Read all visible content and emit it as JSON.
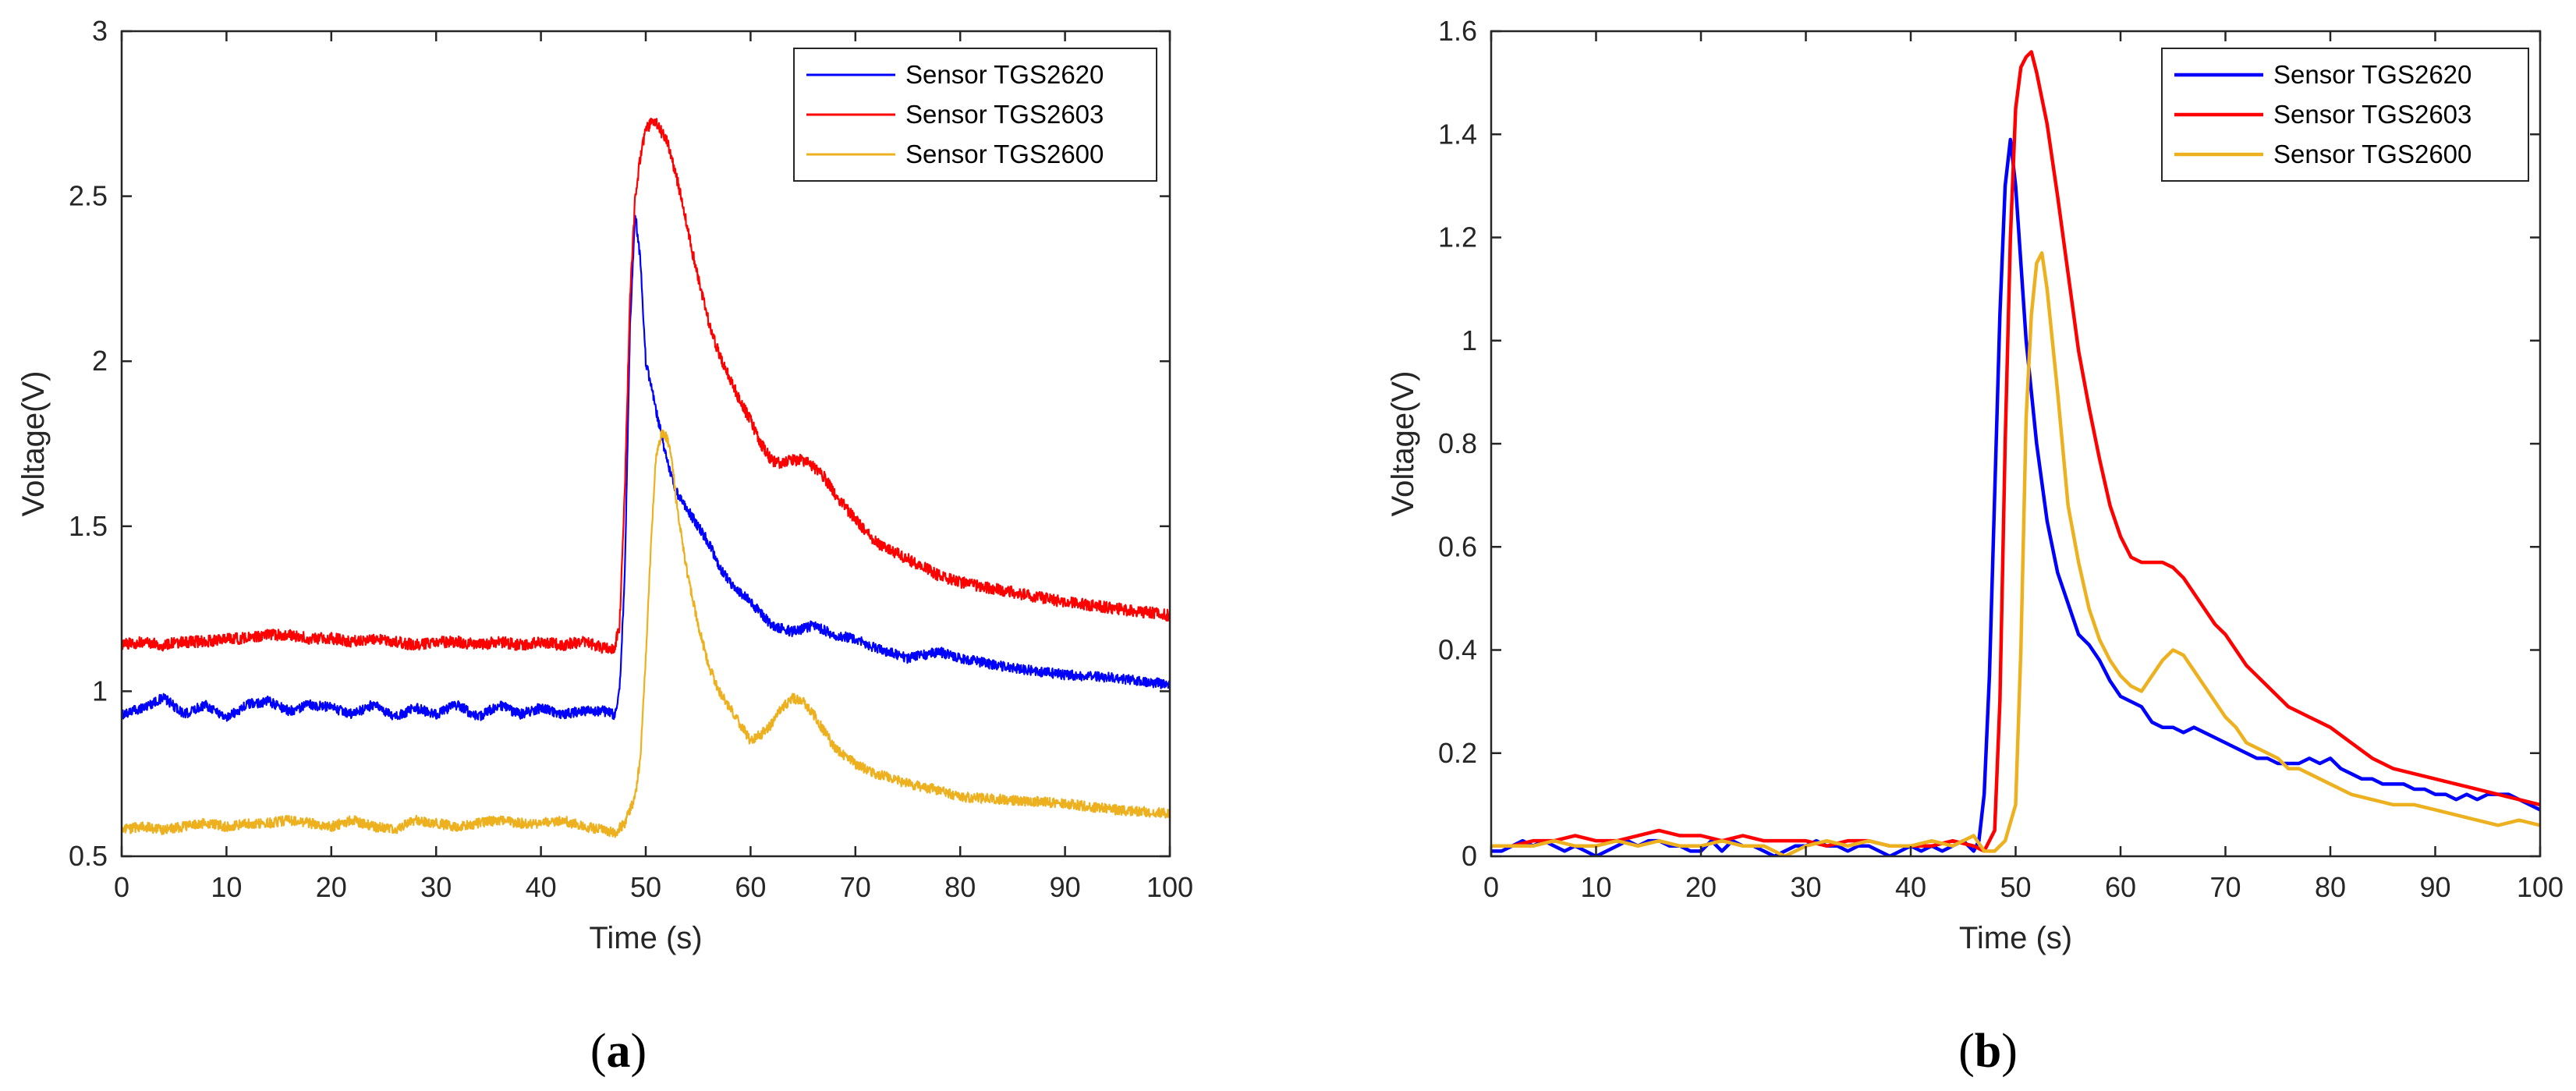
{
  "chart_data": [
    {
      "type": "line",
      "panel_label": "a",
      "xlabel": "Time (s)",
      "ylabel": "Voltage(V)",
      "xlim": [
        0,
        100
      ],
      "ylim": [
        0.5,
        3
      ],
      "xticks": [
        "0",
        "10",
        "20",
        "30",
        "40",
        "50",
        "60",
        "70",
        "80",
        "90",
        "100"
      ],
      "yticks": [
        "0.5",
        "1",
        "1.5",
        "2",
        "2.5",
        "3"
      ],
      "grid": false,
      "legend_position": "top-right",
      "noise": [
        0.03,
        0.035,
        0.03
      ],
      "series": [
        {
          "name": "Sensor TGS2620",
          "color": "#0000ff",
          "x": [
            0,
            2,
            4,
            6,
            8,
            10,
            12,
            14,
            16,
            18,
            20,
            22,
            24,
            26,
            28,
            30,
            32,
            34,
            36,
            38,
            40,
            42,
            44,
            46,
            47,
            47.5,
            48,
            48.5,
            49,
            49.5,
            50,
            51,
            52,
            53,
            54,
            55,
            56,
            57,
            58,
            60,
            62,
            64,
            66,
            68,
            70,
            72,
            75,
            78,
            80,
            85,
            90,
            95,
            100
          ],
          "y": [
            0.93,
            0.95,
            0.98,
            0.93,
            0.96,
            0.92,
            0.96,
            0.97,
            0.94,
            0.96,
            0.95,
            0.93,
            0.96,
            0.92,
            0.95,
            0.93,
            0.96,
            0.92,
            0.96,
            0.93,
            0.95,
            0.93,
            0.94,
            0.94,
            0.93,
            1.0,
            1.35,
            2.1,
            2.45,
            2.3,
            2.0,
            1.85,
            1.7,
            1.6,
            1.55,
            1.5,
            1.45,
            1.38,
            1.33,
            1.27,
            1.2,
            1.18,
            1.2,
            1.17,
            1.16,
            1.13,
            1.1,
            1.12,
            1.1,
            1.07,
            1.05,
            1.04,
            1.02
          ]
        },
        {
          "name": "Sensor TGS2603",
          "color": "#ff0000",
          "x": [
            0,
            2,
            4,
            6,
            8,
            10,
            12,
            14,
            16,
            18,
            20,
            22,
            24,
            26,
            28,
            30,
            32,
            34,
            36,
            38,
            40,
            42,
            44,
            46,
            47,
            47.5,
            48,
            48.5,
            49,
            49.5,
            50,
            50.5,
            51,
            52,
            53,
            54,
            55,
            56,
            57,
            58,
            59,
            60,
            61,
            62,
            63,
            64,
            65,
            66,
            67,
            68,
            70,
            72,
            75,
            78,
            80,
            85,
            90,
            95,
            100
          ],
          "y": [
            1.14,
            1.15,
            1.14,
            1.15,
            1.15,
            1.16,
            1.16,
            1.17,
            1.17,
            1.16,
            1.16,
            1.15,
            1.16,
            1.15,
            1.14,
            1.15,
            1.15,
            1.14,
            1.15,
            1.14,
            1.15,
            1.14,
            1.15,
            1.13,
            1.13,
            1.2,
            1.6,
            2.2,
            2.5,
            2.62,
            2.7,
            2.72,
            2.72,
            2.67,
            2.55,
            2.4,
            2.25,
            2.12,
            2.02,
            1.95,
            1.88,
            1.82,
            1.75,
            1.7,
            1.69,
            1.7,
            1.7,
            1.68,
            1.65,
            1.6,
            1.52,
            1.45,
            1.4,
            1.35,
            1.33,
            1.3,
            1.27,
            1.25,
            1.23
          ]
        },
        {
          "name": "Sensor TGS2600",
          "color": "#edb120",
          "x": [
            0,
            2,
            4,
            6,
            8,
            10,
            12,
            14,
            16,
            18,
            20,
            22,
            24,
            26,
            28,
            30,
            32,
            34,
            36,
            38,
            40,
            42,
            44,
            46,
            47,
            48,
            49,
            49.5,
            50,
            50.5,
            51,
            51.5,
            52,
            52.5,
            53,
            54,
            55,
            56,
            57,
            58,
            59,
            60,
            61,
            62,
            63,
            64,
            65,
            66,
            67,
            68,
            70,
            72,
            75,
            78,
            80,
            85,
            90,
            95,
            100
          ],
          "y": [
            0.58,
            0.59,
            0.58,
            0.59,
            0.6,
            0.59,
            0.6,
            0.6,
            0.61,
            0.6,
            0.59,
            0.61,
            0.59,
            0.58,
            0.61,
            0.6,
            0.59,
            0.6,
            0.61,
            0.6,
            0.6,
            0.61,
            0.59,
            0.58,
            0.57,
            0.6,
            0.68,
            0.8,
            1.1,
            1.45,
            1.72,
            1.78,
            1.77,
            1.7,
            1.55,
            1.35,
            1.2,
            1.08,
            1.0,
            0.95,
            0.9,
            0.85,
            0.87,
            0.9,
            0.95,
            0.98,
            0.97,
            0.93,
            0.88,
            0.83,
            0.78,
            0.75,
            0.72,
            0.7,
            0.68,
            0.67,
            0.66,
            0.64,
            0.63
          ]
        }
      ]
    },
    {
      "type": "line",
      "panel_label": "b",
      "xlabel": "Time (s)",
      "ylabel": "Voltage(V)",
      "xlim": [
        0,
        100
      ],
      "ylim": [
        0,
        1.6
      ],
      "xticks": [
        "0",
        "10",
        "20",
        "30",
        "40",
        "50",
        "60",
        "70",
        "80",
        "90",
        "100"
      ],
      "yticks": [
        "0",
        "0.2",
        "0.4",
        "0.6",
        "0.8",
        "1",
        "1.2",
        "1.4",
        "1.6"
      ],
      "grid": false,
      "legend_position": "top-right",
      "series": [
        {
          "name": "Sensor TGS2620",
          "color": "#0000ff",
          "x": [
            0,
            1,
            2,
            3,
            4,
            5,
            6,
            7,
            8,
            9,
            10,
            11,
            12,
            13,
            14,
            15,
            16,
            17,
            18,
            19,
            20,
            21,
            22,
            23,
            24,
            25,
            26,
            27,
            28,
            29,
            30,
            31,
            32,
            33,
            34,
            35,
            36,
            37,
            38,
            39,
            40,
            41,
            42,
            43,
            44,
            45,
            46,
            46.5,
            47,
            47.5,
            48,
            48.5,
            49,
            49.5,
            50,
            50.5,
            51,
            52,
            53,
            54,
            55,
            56,
            57,
            58,
            59,
            60,
            61,
            62,
            63,
            64,
            65,
            66,
            67,
            68,
            69,
            70,
            71,
            72,
            73,
            74,
            75,
            76,
            77,
            78,
            79,
            80,
            81,
            82,
            83,
            84,
            85,
            86,
            87,
            88,
            89,
            90,
            91,
            92,
            93,
            94,
            95,
            96,
            97,
            98,
            99,
            100
          ],
          "y": [
            0.01,
            0.01,
            0.02,
            0.03,
            0.02,
            0.03,
            0.02,
            0.01,
            0.02,
            0.01,
            0.0,
            0.01,
            0.02,
            0.03,
            0.02,
            0.03,
            0.03,
            0.02,
            0.02,
            0.01,
            0.01,
            0.03,
            0.01,
            0.03,
            0.02,
            0.02,
            0.01,
            0.0,
            0.01,
            0.02,
            0.02,
            0.03,
            0.02,
            0.02,
            0.01,
            0.02,
            0.02,
            0.01,
            0.0,
            0.01,
            0.02,
            0.01,
            0.02,
            0.01,
            0.02,
            0.03,
            0.01,
            0.03,
            0.12,
            0.35,
            0.7,
            1.05,
            1.3,
            1.39,
            1.3,
            1.15,
            1.0,
            0.8,
            0.65,
            0.55,
            0.49,
            0.43,
            0.41,
            0.38,
            0.34,
            0.31,
            0.3,
            0.29,
            0.26,
            0.25,
            0.25,
            0.24,
            0.25,
            0.24,
            0.23,
            0.22,
            0.21,
            0.2,
            0.19,
            0.19,
            0.18,
            0.18,
            0.18,
            0.19,
            0.18,
            0.19,
            0.17,
            0.16,
            0.15,
            0.15,
            0.14,
            0.14,
            0.14,
            0.13,
            0.13,
            0.12,
            0.12,
            0.11,
            0.12,
            0.11,
            0.12,
            0.12,
            0.12,
            0.11,
            0.1,
            0.09
          ]
        },
        {
          "name": "Sensor TGS2603",
          "color": "#ff0000",
          "x": [
            0,
            2,
            4,
            6,
            8,
            10,
            12,
            14,
            16,
            18,
            20,
            22,
            24,
            26,
            28,
            30,
            32,
            34,
            36,
            38,
            40,
            42,
            44,
            46,
            47,
            48,
            48.5,
            49,
            49.5,
            50,
            50.5,
            51,
            51.5,
            52,
            53,
            54,
            55,
            56,
            57,
            58,
            59,
            60,
            61,
            62,
            63,
            64,
            65,
            66,
            67,
            68,
            69,
            70,
            71,
            72,
            73,
            74,
            75,
            76,
            77,
            78,
            79,
            80,
            82,
            84,
            86,
            88,
            90,
            92,
            94,
            96,
            98,
            100
          ],
          "y": [
            0.02,
            0.02,
            0.03,
            0.03,
            0.04,
            0.03,
            0.03,
            0.04,
            0.05,
            0.04,
            0.04,
            0.03,
            0.04,
            0.03,
            0.03,
            0.03,
            0.02,
            0.03,
            0.03,
            0.02,
            0.02,
            0.02,
            0.03,
            0.02,
            0.01,
            0.05,
            0.3,
            0.8,
            1.2,
            1.45,
            1.53,
            1.55,
            1.56,
            1.52,
            1.42,
            1.28,
            1.13,
            0.98,
            0.87,
            0.77,
            0.68,
            0.62,
            0.58,
            0.57,
            0.57,
            0.57,
            0.56,
            0.54,
            0.51,
            0.48,
            0.45,
            0.43,
            0.4,
            0.37,
            0.35,
            0.33,
            0.31,
            0.29,
            0.28,
            0.27,
            0.26,
            0.25,
            0.22,
            0.19,
            0.17,
            0.16,
            0.15,
            0.14,
            0.13,
            0.12,
            0.11,
            0.1
          ]
        },
        {
          "name": "Sensor TGS2600",
          "color": "#edb120",
          "x": [
            0,
            2,
            4,
            6,
            8,
            10,
            12,
            14,
            16,
            18,
            20,
            22,
            24,
            26,
            28,
            30,
            32,
            34,
            36,
            38,
            40,
            42,
            44,
            46,
            47,
            48,
            49,
            50,
            50.5,
            51,
            51.5,
            52,
            52.5,
            53,
            54,
            55,
            56,
            57,
            58,
            59,
            60,
            61,
            62,
            63,
            64,
            65,
            66,
            67,
            68,
            69,
            70,
            71,
            72,
            73,
            74,
            75,
            76,
            77,
            78,
            79,
            80,
            82,
            84,
            86,
            88,
            90,
            92,
            94,
            96,
            98,
            100
          ],
          "y": [
            0.02,
            0.02,
            0.02,
            0.03,
            0.02,
            0.02,
            0.03,
            0.02,
            0.03,
            0.02,
            0.02,
            0.03,
            0.02,
            0.02,
            0.0,
            0.02,
            0.03,
            0.02,
            0.03,
            0.02,
            0.02,
            0.03,
            0.02,
            0.04,
            0.01,
            0.01,
            0.03,
            0.1,
            0.4,
            0.85,
            1.05,
            1.15,
            1.17,
            1.1,
            0.9,
            0.68,
            0.57,
            0.48,
            0.42,
            0.38,
            0.35,
            0.33,
            0.32,
            0.35,
            0.38,
            0.4,
            0.39,
            0.36,
            0.33,
            0.3,
            0.27,
            0.25,
            0.22,
            0.21,
            0.2,
            0.19,
            0.17,
            0.17,
            0.16,
            0.15,
            0.14,
            0.12,
            0.11,
            0.1,
            0.1,
            0.09,
            0.08,
            0.07,
            0.06,
            0.07,
            0.06
          ]
        }
      ]
    }
  ],
  "captions": {
    "a": {
      "open": "(",
      "letter": "a",
      "close": ")"
    },
    "b": {
      "open": "(",
      "letter": "b",
      "close": ")"
    }
  }
}
